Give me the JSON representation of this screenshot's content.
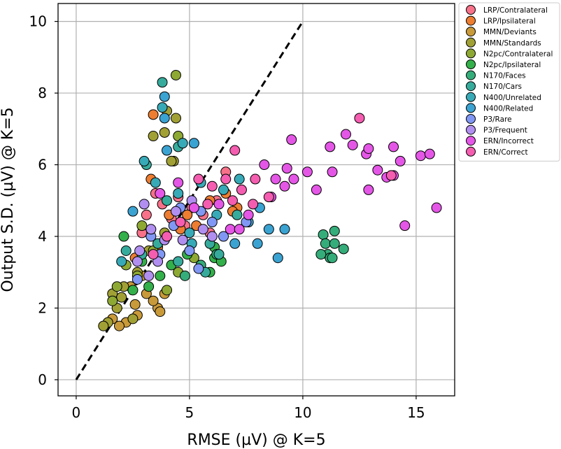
{
  "chart_data": {
    "type": "scatter",
    "title": "",
    "xlabel": "RMSE (µV) @ K=5",
    "ylabel": "Output S.D. (µV) @ K=5",
    "xlim": [
      -0.8,
      16.7
    ],
    "ylim": [
      -0.45,
      10.5
    ],
    "x_ticks": [
      0,
      5,
      10,
      15
    ],
    "y_ticks": [
      0,
      2,
      4,
      6,
      8,
      10
    ],
    "grid": true,
    "legend_position": "outside-right-top",
    "reference_line": {
      "style": "dashed",
      "color": "#000000",
      "points": [
        [
          0,
          0
        ],
        [
          10,
          10
        ]
      ]
    },
    "marker_edge_color": "#000000",
    "series": [
      {
        "name": "LRP/Contralateral",
        "color": "#f77189",
        "points": [
          [
            3.5,
            5.2
          ],
          [
            3.8,
            4.9
          ],
          [
            4.2,
            4.5
          ],
          [
            4.8,
            4.3
          ],
          [
            5.1,
            4.8
          ],
          [
            5.6,
            4.6
          ],
          [
            6.2,
            5.0
          ],
          [
            6.6,
            5.8
          ],
          [
            3.1,
            4.6
          ],
          [
            2.9,
            4.1
          ],
          [
            5.9,
            4.1
          ],
          [
            4.5,
            5.1
          ]
        ]
      },
      {
        "name": "LRP/Ipsilateral",
        "color": "#ed7d31",
        "points": [
          [
            3.4,
            7.4
          ],
          [
            3.3,
            5.6
          ],
          [
            3.6,
            3.7
          ],
          [
            4.1,
            4.6
          ],
          [
            4.6,
            4.2
          ],
          [
            5.3,
            4.3
          ],
          [
            5.9,
            5.0
          ],
          [
            6.6,
            5.2
          ],
          [
            7.1,
            4.8
          ],
          [
            2.6,
            3.4
          ],
          [
            6.9,
            4.7
          ],
          [
            4.9,
            4.6
          ]
        ]
      },
      {
        "name": "MMN/Deviants",
        "color": "#c99a39",
        "points": [
          [
            2.2,
            1.6
          ],
          [
            2.6,
            2.1
          ],
          [
            3.1,
            2.4
          ],
          [
            3.6,
            2.0
          ],
          [
            3.9,
            2.4
          ],
          [
            1.6,
            1.7
          ],
          [
            2.9,
            2.9
          ],
          [
            3.4,
            2.2
          ],
          [
            2.4,
            2.6
          ],
          [
            1.9,
            1.5
          ],
          [
            3.7,
            1.9
          ],
          [
            2.7,
            1.8
          ]
        ]
      },
      {
        "name": "MMN/Standards",
        "color": "#a1a035",
        "points": [
          [
            3.9,
            6.9
          ],
          [
            4.3,
            6.1
          ],
          [
            3.4,
            6.8
          ],
          [
            4.0,
            7.5
          ],
          [
            4.4,
            7.3
          ],
          [
            4.2,
            6.1
          ],
          [
            3.2,
            3.6
          ],
          [
            2.7,
            3.0
          ],
          [
            2.1,
            2.6
          ],
          [
            1.6,
            2.4
          ],
          [
            1.4,
            1.6
          ],
          [
            1.8,
            2.0
          ],
          [
            1.2,
            1.5
          ],
          [
            2.5,
            1.7
          ],
          [
            2.0,
            2.3
          ],
          [
            3.9,
            4.1
          ]
        ]
      },
      {
        "name": "N2pc/Contralateral",
        "color": "#8ea933",
        "points": [
          [
            4.4,
            8.5
          ],
          [
            4.5,
            6.8
          ],
          [
            1.8,
            2.6
          ],
          [
            2.2,
            3.2
          ],
          [
            2.7,
            2.9
          ],
          [
            3.4,
            3.6
          ],
          [
            4.0,
            2.5
          ],
          [
            4.5,
            3.0
          ],
          [
            1.6,
            2.2
          ],
          [
            2.9,
            4.3
          ],
          [
            5.2,
            3.4
          ]
        ]
      },
      {
        "name": "N2pc/Ipsilateral",
        "color": "#33b04a",
        "points": [
          [
            2.1,
            4.0
          ],
          [
            2.9,
            3.3
          ],
          [
            3.2,
            2.6
          ],
          [
            3.7,
            2.9
          ],
          [
            4.2,
            3.2
          ],
          [
            4.9,
            3.5
          ],
          [
            5.5,
            3.1
          ],
          [
            6.1,
            3.4
          ],
          [
            2.5,
            2.5
          ],
          [
            5.9,
            3.0
          ],
          [
            6.4,
            3.3
          ],
          [
            6.1,
            3.7
          ]
        ]
      },
      {
        "name": "N170/Faces",
        "color": "#35ad7a",
        "points": [
          [
            10.9,
            4.05
          ],
          [
            11.0,
            3.8
          ],
          [
            11.1,
            3.5
          ],
          [
            11.2,
            3.4
          ],
          [
            11.4,
            4.15
          ],
          [
            11.4,
            3.8
          ],
          [
            11.8,
            3.65
          ],
          [
            11.3,
            3.4
          ],
          [
            10.8,
            3.5
          ],
          [
            4.8,
            2.9
          ],
          [
            5.5,
            3.2
          ],
          [
            6.2,
            3.5
          ]
        ]
      },
      {
        "name": "N170/Cars",
        "color": "#36ab9c",
        "points": [
          [
            3.8,
            8.3
          ],
          [
            4.5,
            6.5
          ],
          [
            2.2,
            3.6
          ],
          [
            2.9,
            3.5
          ],
          [
            3.6,
            3.8
          ],
          [
            4.5,
            3.3
          ],
          [
            5.7,
            3.0
          ],
          [
            5.9,
            3.8
          ],
          [
            6.3,
            3.5
          ],
          [
            3.1,
            6.0
          ],
          [
            4.0,
            5.0
          ],
          [
            7.1,
            4.6
          ]
        ]
      },
      {
        "name": "N400/Unrelated",
        "color": "#38aab7",
        "points": [
          [
            3.8,
            7.6
          ],
          [
            4.7,
            6.6
          ],
          [
            3.0,
            6.1
          ],
          [
            3.5,
            5.5
          ],
          [
            4.5,
            5.2
          ],
          [
            5.5,
            5.5
          ],
          [
            6.5,
            5.3
          ],
          [
            7.2,
            5.6
          ],
          [
            2.0,
            3.3
          ],
          [
            5.0,
            4.1
          ],
          [
            6.2,
            4.6
          ],
          [
            5.1,
            3.8
          ]
        ]
      },
      {
        "name": "N400/Related",
        "color": "#3ba3d2",
        "points": [
          [
            3.9,
            7.9
          ],
          [
            3.9,
            7.3
          ],
          [
            4.0,
            6.4
          ],
          [
            5.2,
            6.6
          ],
          [
            8.9,
            3.4
          ],
          [
            9.2,
            4.2
          ],
          [
            8.5,
            4.2
          ],
          [
            8.0,
            3.8
          ],
          [
            8.1,
            4.8
          ],
          [
            7.0,
            3.8
          ],
          [
            7.6,
            4.4
          ],
          [
            2.5,
            4.7
          ]
        ]
      },
      {
        "name": "P3/Rare",
        "color": "#8197f4",
        "points": [
          [
            5.5,
            4.7
          ],
          [
            5.4,
            3.1
          ],
          [
            6.5,
            4.0
          ],
          [
            4.0,
            4.0
          ],
          [
            4.3,
            4.3
          ],
          [
            2.7,
            2.8
          ],
          [
            3.7,
            3.5
          ],
          [
            5.0,
            3.6
          ],
          [
            6.0,
            4.4
          ],
          [
            7.5,
            4.4
          ],
          [
            3.3,
            4.0
          ],
          [
            4.6,
            4.8
          ]
        ]
      },
      {
        "name": "P3/Frequent",
        "color": "#b18ff0",
        "points": [
          [
            3.0,
            4.9
          ],
          [
            3.3,
            4.2
          ],
          [
            3.9,
            3.9
          ],
          [
            4.4,
            4.7
          ],
          [
            5.1,
            5.0
          ],
          [
            2.7,
            3.3
          ],
          [
            3.2,
            2.9
          ],
          [
            2.8,
            3.6
          ],
          [
            4.7,
            3.9
          ],
          [
            5.6,
            4.2
          ],
          [
            3.6,
            3.3
          ],
          [
            6.0,
            4.0
          ]
        ]
      },
      {
        "name": "ERN/Incorrect",
        "color": "#e456e6",
        "points": [
          [
            9.5,
            6.7
          ],
          [
            11.2,
            6.5
          ],
          [
            11.9,
            6.85
          ],
          [
            12.2,
            6.55
          ],
          [
            12.8,
            6.3
          ],
          [
            12.9,
            6.45
          ],
          [
            13.3,
            5.85
          ],
          [
            13.7,
            5.65
          ],
          [
            14.0,
            5.7
          ],
          [
            14.0,
            6.5
          ],
          [
            14.3,
            6.1
          ],
          [
            15.2,
            6.25
          ],
          [
            15.6,
            6.3
          ],
          [
            15.9,
            4.8
          ],
          [
            14.5,
            4.3
          ],
          [
            10.2,
            5.8
          ],
          [
            10.6,
            5.3
          ],
          [
            11.3,
            5.8
          ],
          [
            12.9,
            5.3
          ],
          [
            9.3,
            5.9
          ],
          [
            9.2,
            5.4
          ],
          [
            9.6,
            5.6
          ],
          [
            8.8,
            5.6
          ],
          [
            8.6,
            5.1
          ],
          [
            8.3,
            6.0
          ],
          [
            4.5,
            5.5
          ],
          [
            3.7,
            5.2
          ],
          [
            5.2,
            4.8
          ],
          [
            6.8,
            4.2
          ],
          [
            7.6,
            4.6
          ],
          [
            6.3,
            4.9
          ],
          [
            7.2,
            4.2
          ]
        ]
      },
      {
        "name": "ERN/Correct",
        "color": "#f45db0",
        "points": [
          [
            7.0,
            6.4
          ],
          [
            12.5,
            7.3
          ],
          [
            13.9,
            5.7
          ],
          [
            8.5,
            5.1
          ],
          [
            7.9,
            5.6
          ],
          [
            7.3,
            5.3
          ],
          [
            6.6,
            5.6
          ],
          [
            6.0,
            5.4
          ],
          [
            5.4,
            5.6
          ],
          [
            4.6,
            4.4
          ],
          [
            4.0,
            4.0
          ],
          [
            3.4,
            3.5
          ],
          [
            5.8,
            4.9
          ],
          [
            7.8,
            4.9
          ],
          [
            6.9,
            5.0
          ]
        ]
      }
    ]
  }
}
